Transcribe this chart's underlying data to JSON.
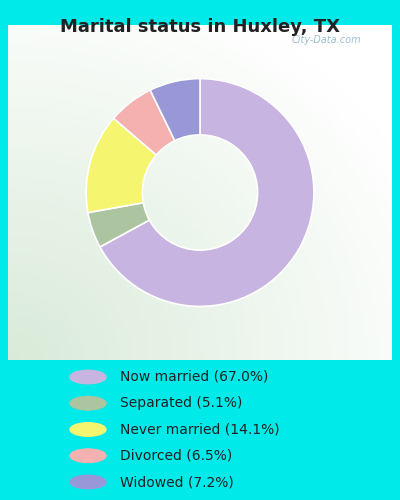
{
  "title": "Marital status in Huxley, TX",
  "title_fontsize": 13,
  "title_fontweight": "bold",
  "title_color": "#222222",
  "bg_cyan": "#00eaea",
  "watermark": "City-Data.com",
  "slices": [
    {
      "label": "Now married (67.0%)",
      "value": 67.0,
      "color": "#c8b4e0"
    },
    {
      "label": "Separated (5.1%)",
      "value": 5.1,
      "color": "#adc4a0"
    },
    {
      "label": "Never married (14.1%)",
      "value": 14.1,
      "color": "#f5f570"
    },
    {
      "label": "Divorced (6.5%)",
      "value": 6.5,
      "color": "#f5b0b0"
    },
    {
      "label": "Widowed (7.2%)",
      "value": 7.2,
      "color": "#9898d8"
    }
  ],
  "legend_fontsize": 10,
  "donut_width": 0.42,
  "startangle": 90
}
